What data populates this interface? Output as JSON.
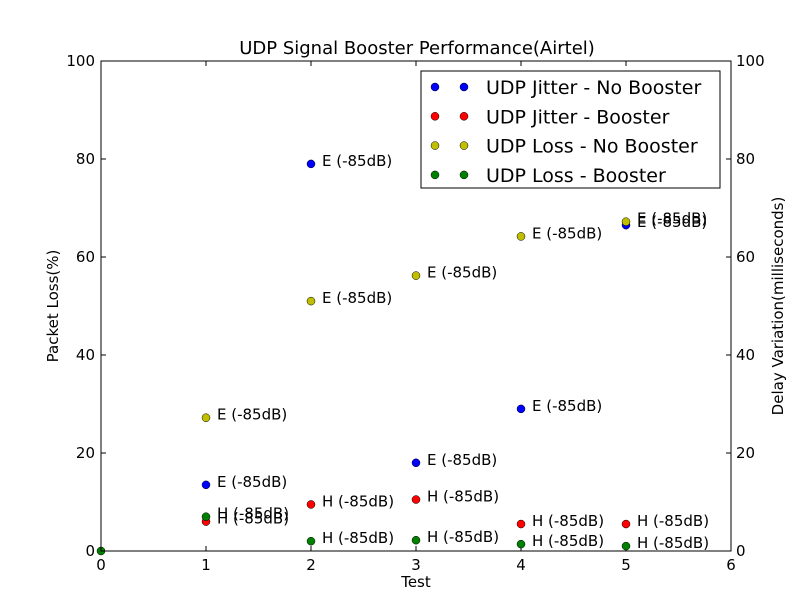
{
  "chart_data": {
    "type": "scatter",
    "title": "UDP Signal Booster Performance(Airtel)",
    "xlabel": "Test",
    "ylabel_left": "Packet Loss(%)",
    "ylabel_right": "Delay Variation(milliseconds)",
    "xlim": [
      0,
      6
    ],
    "ylim_left": [
      0,
      100
    ],
    "ylim_right": [
      0,
      100
    ],
    "x_ticks": [
      "0",
      "1",
      "2",
      "3",
      "4",
      "5",
      "6"
    ],
    "y_ticks_left": [
      "0",
      "20",
      "40",
      "60",
      "80",
      "100"
    ],
    "y_ticks_right": [
      "0",
      "20",
      "40",
      "60",
      "80",
      "100"
    ],
    "grid": false,
    "legend_position": "top-right",
    "series": [
      {
        "name": "UDP Jitter - No Booster",
        "color": "#0000ff",
        "axis": "right",
        "points": [
          {
            "x": 1,
            "y": 13.5,
            "label": "E (-85dB)"
          },
          {
            "x": 2,
            "y": 79,
            "label": "E (-85dB)"
          },
          {
            "x": 3,
            "y": 18,
            "label": "E (-85dB)"
          },
          {
            "x": 4,
            "y": 29,
            "label": "E (-85dB)"
          },
          {
            "x": 5,
            "y": 66.5,
            "label": "E (-85dB)"
          }
        ]
      },
      {
        "name": "UDP Jitter - Booster",
        "color": "#ff0000",
        "axis": "right",
        "points": [
          {
            "x": 1,
            "y": 6,
            "label": "H (-85dB)"
          },
          {
            "x": 2,
            "y": 9.5,
            "label": "H (-85dB)"
          },
          {
            "x": 3,
            "y": 10.5,
            "label": "H (-85dB)"
          },
          {
            "x": 4,
            "y": 5.5,
            "label": "H (-85dB)"
          },
          {
            "x": 5,
            "y": 5.5,
            "label": "H (-85dB)"
          }
        ]
      },
      {
        "name": "UDP Loss - No Booster",
        "color": "#bfbf00",
        "axis": "left",
        "points": [
          {
            "x": 1,
            "y": 27.2,
            "label": "E (-85dB)"
          },
          {
            "x": 2,
            "y": 51,
            "label": "E (-85dB)"
          },
          {
            "x": 3,
            "y": 56.2,
            "label": "E (-85dB)"
          },
          {
            "x": 4,
            "y": 64.2,
            "label": "E (-85dB)"
          },
          {
            "x": 5,
            "y": 67.2,
            "label": "E (-85dB)"
          }
        ]
      },
      {
        "name": "UDP Loss - Booster",
        "color": "#008000",
        "axis": "left",
        "points": [
          {
            "x": 0,
            "y": 0,
            "label": ""
          },
          {
            "x": 1,
            "y": 7,
            "label": "H (-85dB)"
          },
          {
            "x": 2,
            "y": 2,
            "label": "H (-85dB)"
          },
          {
            "x": 3,
            "y": 2.2,
            "label": "H (-85dB)"
          },
          {
            "x": 4,
            "y": 1.4,
            "label": "H (-85dB)"
          },
          {
            "x": 5,
            "y": 1,
            "label": "H (-85dB)"
          }
        ]
      }
    ]
  }
}
